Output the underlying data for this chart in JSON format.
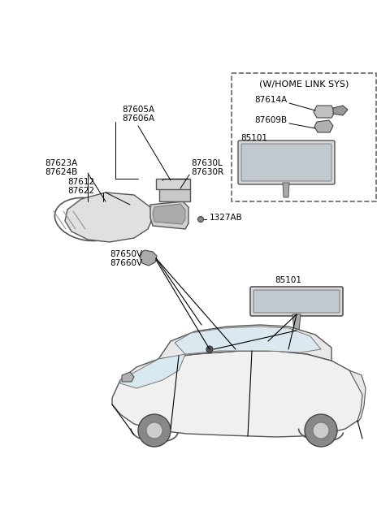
{
  "background_color": "#ffffff",
  "figsize": [
    4.8,
    6.55
  ],
  "dpi": 100,
  "labels": {
    "left_mirror_top1": "87605A",
    "left_mirror_top2": "87606A",
    "left_mirror_left1": "87623A",
    "left_mirror_left2": "87624B",
    "left_mirror_mid1": "87612",
    "left_mirror_mid2": "87622",
    "left_mirror_right1": "87630L",
    "left_mirror_right2": "87630R",
    "bolt_label": "1327AB",
    "bottom_left1": "87650V",
    "bottom_left2": "87660V",
    "rearview_label": "85101",
    "rearview_label2": "85101",
    "box_title": "(W/HOME LINK SYS)",
    "box_label1": "87614A",
    "box_label2": "87609B",
    "box_label3": "85101"
  },
  "colors": {
    "line": "#000000",
    "box_border": "#555555",
    "text": "#000000",
    "gray_fill": "#cccccc",
    "light_gray": "#e8e8e8",
    "dark_gray": "#888888",
    "medium_gray": "#aaaaaa"
  },
  "font_size": 7.5
}
